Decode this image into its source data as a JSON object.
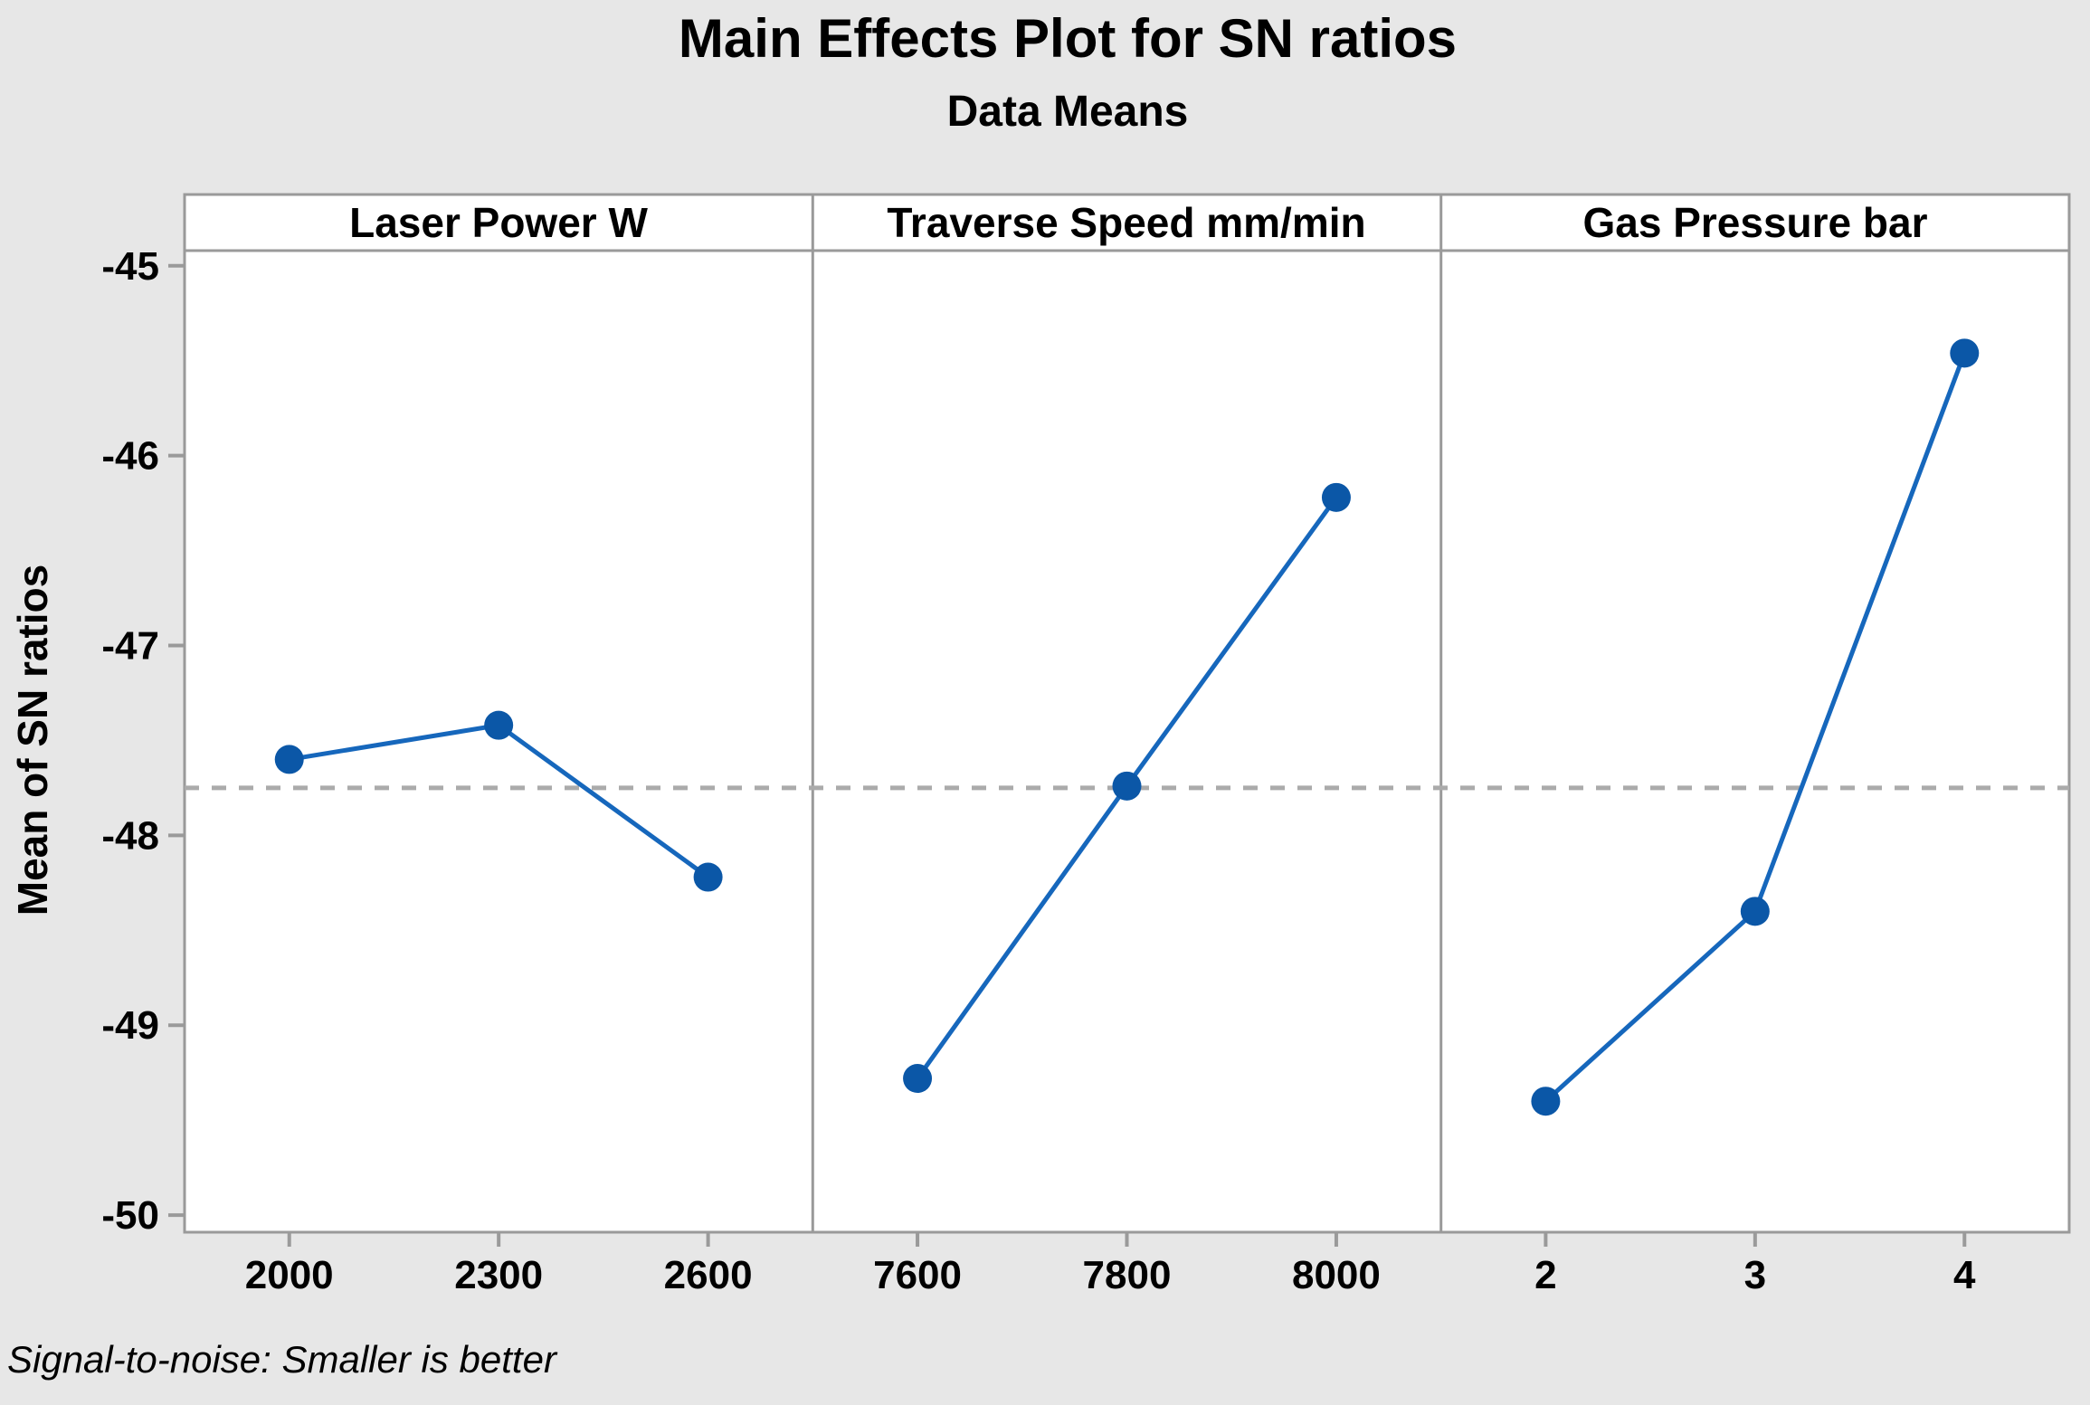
{
  "colors": {
    "background": "#E7E7E7",
    "plot_background": "#FFFFFF",
    "frame_gray": "#9A9A9A",
    "text": "#000000",
    "marker_blue": "#0B57A7",
    "line_blue": "#1667BC",
    "reference_dash_gray": "#ABABAB"
  },
  "chart_data": {
    "type": "line",
    "title": "Main Effects Plot for SN ratios",
    "subtitle": "Data Means",
    "ylabel": "Mean of SN ratios",
    "ylim": [
      -50.09,
      -44.92
    ],
    "yticks": [
      -45,
      -46,
      -47,
      -48,
      -49,
      -50
    ],
    "grid": false,
    "legend": "none",
    "marker_style": "filled-circle",
    "reference_line": {
      "value": -47.75,
      "style": "dashed",
      "meaning": "overall mean of SN ratios"
    },
    "panels": [
      {
        "label": "Laser Power W",
        "categories": [
          "2000",
          "2300",
          "2600"
        ],
        "values": [
          -47.6,
          -47.42,
          -48.22
        ]
      },
      {
        "label": "Traverse Speed mm/min",
        "categories": [
          "7600",
          "7800",
          "8000"
        ],
        "values": [
          -49.28,
          -47.74,
          -46.22
        ]
      },
      {
        "label": "Gas Pressure bar",
        "categories": [
          "2",
          "3",
          "4"
        ],
        "values": [
          -49.4,
          -48.4,
          -45.46
        ]
      }
    ],
    "footnote": "Signal-to-noise: Smaller is better"
  }
}
